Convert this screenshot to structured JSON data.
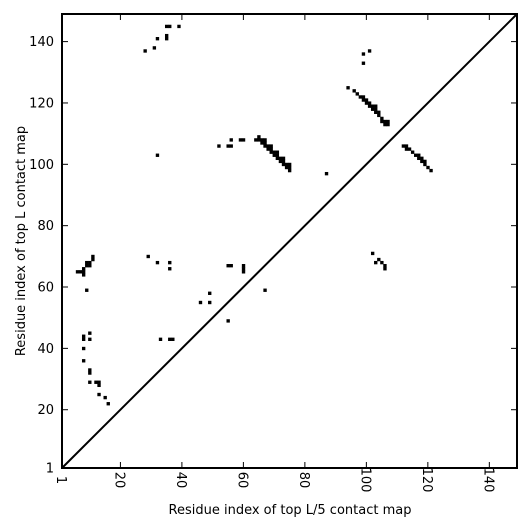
{
  "chart_data": {
    "type": "scatter",
    "xlabel": "Residue index of top L/5 contact map",
    "ylabel": "Residue index of top L contact map",
    "xlim": [
      1,
      149
    ],
    "ylim": [
      1,
      149
    ],
    "x_ticks": [
      "1",
      "20",
      "40",
      "60",
      "80",
      "100",
      "120",
      "140"
    ],
    "x_tick_values": [
      1,
      20,
      40,
      60,
      80,
      100,
      120,
      140
    ],
    "y_ticks": [
      "1",
      "20",
      "40",
      "60",
      "80",
      "100",
      "120",
      "140"
    ],
    "y_tick_values": [
      1,
      20,
      40,
      60,
      80,
      100,
      120,
      140
    ],
    "diagonal": true,
    "marker_color": "#000000",
    "series": [
      {
        "points": [
          [
            28,
            137
          ],
          [
            31,
            138
          ],
          [
            32,
            141
          ],
          [
            35,
            141
          ],
          [
            35,
            142
          ],
          [
            35,
            145
          ],
          [
            36,
            145
          ],
          [
            39,
            145
          ],
          [
            32,
            103
          ],
          [
            52,
            106
          ],
          [
            55,
            106
          ],
          [
            56,
            106
          ],
          [
            56,
            108
          ],
          [
            59,
            108
          ],
          [
            60,
            108
          ],
          [
            64,
            108
          ],
          [
            65,
            108
          ],
          [
            65,
            109
          ],
          [
            66,
            107
          ],
          [
            66,
            108
          ],
          [
            67,
            106
          ],
          [
            67,
            107
          ],
          [
            67,
            108
          ],
          [
            68,
            105
          ],
          [
            68,
            106
          ],
          [
            69,
            104
          ],
          [
            69,
            105
          ],
          [
            69,
            106
          ],
          [
            70,
            103
          ],
          [
            70,
            104
          ],
          [
            71,
            102
          ],
          [
            71,
            103
          ],
          [
            71,
            104
          ],
          [
            72,
            101
          ],
          [
            72,
            102
          ],
          [
            73,
            100
          ],
          [
            73,
            101
          ],
          [
            73,
            102
          ],
          [
            74,
            99
          ],
          [
            74,
            100
          ],
          [
            75,
            98
          ],
          [
            75,
            99
          ],
          [
            75,
            100
          ],
          [
            87,
            97
          ],
          [
            94,
            125
          ],
          [
            96,
            124
          ],
          [
            97,
            123
          ],
          [
            98,
            122
          ],
          [
            99,
            121
          ],
          [
            99,
            122
          ],
          [
            100,
            120
          ],
          [
            100,
            121
          ],
          [
            101,
            119
          ],
          [
            101,
            120
          ],
          [
            102,
            118
          ],
          [
            102,
            119
          ],
          [
            103,
            117
          ],
          [
            103,
            118
          ],
          [
            103,
            119
          ],
          [
            104,
            116
          ],
          [
            104,
            117
          ],
          [
            105,
            114
          ],
          [
            105,
            115
          ],
          [
            106,
            113
          ],
          [
            106,
            114
          ],
          [
            107,
            113
          ],
          [
            107,
            114
          ],
          [
            99,
            133
          ],
          [
            99,
            136
          ],
          [
            101,
            137
          ],
          [
            112,
            106
          ],
          [
            113,
            105
          ],
          [
            113,
            106
          ],
          [
            114,
            105
          ],
          [
            115,
            104
          ],
          [
            116,
            103
          ],
          [
            117,
            102
          ],
          [
            117,
            103
          ],
          [
            118,
            101
          ],
          [
            118,
            102
          ],
          [
            119,
            100
          ],
          [
            119,
            101
          ],
          [
            120,
            99
          ],
          [
            121,
            98
          ],
          [
            102,
            71
          ],
          [
            103,
            68
          ],
          [
            104,
            69
          ],
          [
            105,
            68
          ],
          [
            106,
            67
          ],
          [
            106,
            66
          ],
          [
            29,
            70
          ],
          [
            32,
            68
          ],
          [
            36,
            68
          ],
          [
            36,
            66
          ],
          [
            46,
            55
          ],
          [
            49,
            55
          ],
          [
            49,
            58
          ],
          [
            55,
            67
          ],
          [
            56,
            67
          ],
          [
            60,
            67
          ],
          [
            60,
            66
          ],
          [
            60,
            65
          ],
          [
            55,
            49
          ],
          [
            67,
            59
          ],
          [
            6,
            65
          ],
          [
            7,
            65
          ],
          [
            8,
            64
          ],
          [
            8,
            65
          ],
          [
            8,
            66
          ],
          [
            9,
            67
          ],
          [
            9,
            68
          ],
          [
            10,
            67
          ],
          [
            10,
            68
          ],
          [
            11,
            69
          ],
          [
            11,
            70
          ],
          [
            9,
            59
          ],
          [
            8,
            44
          ],
          [
            8,
            43
          ],
          [
            8,
            40
          ],
          [
            8,
            36
          ],
          [
            10,
            45
          ],
          [
            10,
            43
          ],
          [
            10,
            33
          ],
          [
            10,
            32
          ],
          [
            10,
            29
          ],
          [
            12,
            29
          ],
          [
            13,
            28
          ],
          [
            13,
            29
          ],
          [
            13,
            25
          ],
          [
            15,
            24
          ],
          [
            16,
            22
          ],
          [
            33,
            43
          ],
          [
            36,
            43
          ],
          [
            37,
            43
          ]
        ]
      }
    ]
  }
}
